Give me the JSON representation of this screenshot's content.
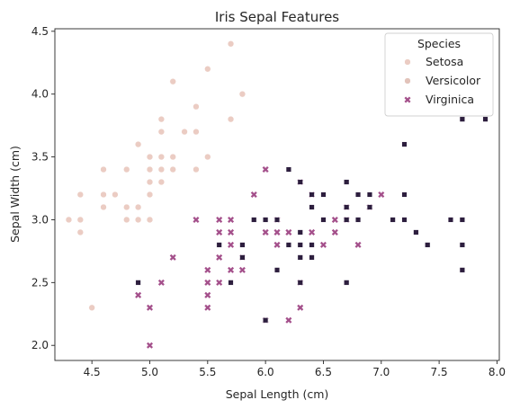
{
  "chart_data": {
    "type": "scatter",
    "title": "Iris Sepal Features",
    "xlabel": "Sepal Length (cm)",
    "ylabel": "Sepal Width (cm)",
    "xlim": [
      4.18,
      8.02
    ],
    "ylim": [
      1.88,
      4.52
    ],
    "xticks": [
      4.5,
      5.0,
      5.5,
      6.0,
      6.5,
      7.0,
      7.5,
      8.0
    ],
    "xtick_labels": [
      "4.5",
      "5.0",
      "5.5",
      "6.0",
      "6.5",
      "7.0",
      "7.5",
      "8.0"
    ],
    "yticks": [
      2.0,
      2.5,
      3.0,
      3.5,
      4.0,
      4.5
    ],
    "ytick_labels": [
      "2.0",
      "2.5",
      "3.0",
      "3.5",
      "4.0",
      "4.5"
    ],
    "grid": false,
    "legend": {
      "title": "Species",
      "placement": "top-right"
    },
    "series": [
      {
        "name": "Setosa",
        "marker": "circle",
        "color": "#ebccc3",
        "x": [
          4.3,
          4.4,
          4.4,
          4.4,
          4.5,
          4.6,
          4.6,
          4.6,
          4.7,
          4.8,
          4.8,
          4.8,
          4.9,
          4.9,
          4.9,
          5.0,
          5.0,
          5.0,
          5.0,
          5.0,
          5.1,
          5.1,
          5.1,
          5.1,
          5.1,
          5.1,
          5.2,
          5.2,
          5.2,
          5.3,
          5.4,
          5.4,
          5.4,
          5.5,
          5.5,
          5.7,
          5.7,
          5.8
        ],
        "y": [
          3.0,
          2.9,
          3.0,
          3.2,
          2.3,
          3.1,
          3.2,
          3.4,
          3.2,
          3.0,
          3.1,
          3.4,
          3.0,
          3.1,
          3.6,
          3.0,
          3.2,
          3.3,
          3.4,
          3.5,
          3.3,
          3.4,
          3.5,
          3.7,
          3.8,
          3.5,
          3.4,
          3.5,
          4.1,
          3.7,
          3.4,
          3.7,
          3.9,
          3.5,
          4.2,
          3.8,
          4.4,
          4.0
        ]
      },
      {
        "name": "Versicolor",
        "marker": "circle",
        "color": "#e2c3ba",
        "x": [],
        "y": []
      },
      {
        "name": "Virginica",
        "marker": "x",
        "color": "#a4508b",
        "x": [
          4.9,
          5.0,
          5.0,
          5.1,
          5.2,
          5.4,
          5.5,
          5.5,
          5.5,
          5.5,
          5.6,
          5.6,
          5.6,
          5.6,
          5.7,
          5.7,
          5.7,
          5.7,
          5.8,
          5.8,
          5.9,
          6.0,
          6.0,
          6.0,
          6.1,
          6.1,
          6.1,
          6.2,
          6.2,
          6.3,
          6.3,
          6.3,
          6.4,
          6.4,
          6.5,
          6.6,
          6.6,
          6.7,
          6.7,
          6.8,
          6.9,
          7.0
        ],
        "y": [
          2.4,
          2.0,
          2.3,
          2.5,
          2.7,
          3.0,
          2.3,
          2.4,
          2.5,
          2.6,
          2.5,
          2.7,
          2.9,
          3.0,
          2.6,
          2.8,
          2.9,
          3.0,
          2.6,
          2.7,
          3.2,
          2.2,
          2.9,
          3.4,
          2.8,
          2.9,
          3.0,
          2.2,
          2.9,
          2.3,
          2.5,
          3.3,
          2.9,
          3.2,
          2.8,
          2.9,
          3.0,
          3.0,
          3.1,
          2.8,
          3.1,
          3.2
        ]
      },
      {
        "name": "",
        "marker": "square",
        "color": "#2d1e3e",
        "x": [
          4.9,
          5.6,
          5.7,
          5.8,
          5.8,
          5.8,
          5.9,
          6.0,
          6.0,
          6.0,
          6.1,
          6.1,
          6.2,
          6.2,
          6.3,
          6.3,
          6.3,
          6.3,
          6.3,
          6.4,
          6.4,
          6.4,
          6.4,
          6.4,
          6.5,
          6.5,
          6.5,
          6.7,
          6.7,
          6.7,
          6.7,
          6.7,
          6.8,
          6.8,
          6.9,
          6.9,
          7.1,
          7.2,
          7.2,
          7.2,
          7.3,
          7.4,
          7.6,
          7.7,
          7.7,
          7.7,
          7.7,
          7.9
        ],
        "y": [
          2.5,
          2.8,
          2.5,
          2.7,
          2.8,
          2.7,
          3.0,
          2.2,
          3.0,
          3.0,
          2.6,
          3.0,
          2.8,
          3.4,
          2.5,
          2.7,
          2.8,
          2.9,
          3.3,
          2.7,
          2.8,
          3.1,
          3.2,
          2.8,
          3.0,
          3.0,
          3.2,
          2.5,
          3.0,
          3.1,
          3.3,
          3.3,
          3.0,
          3.2,
          3.1,
          3.2,
          3.0,
          3.0,
          3.2,
          3.6,
          2.9,
          2.8,
          3.0,
          2.6,
          2.8,
          3.0,
          3.8,
          3.8
        ]
      }
    ]
  }
}
